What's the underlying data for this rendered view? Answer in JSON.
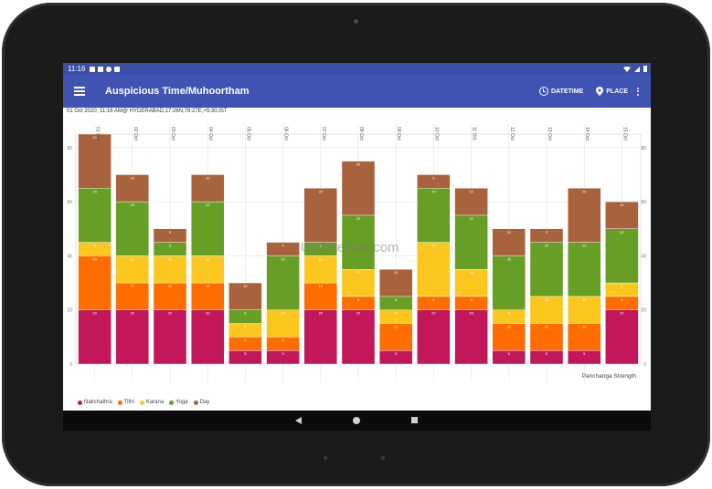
{
  "status_bar": {
    "time": "11:16"
  },
  "toolbar": {
    "title": "Auspicious Time/Muhoortham",
    "datetime_label": "DATETIME",
    "place_label": "PLACE"
  },
  "info_line": "01 Oct 2020, 11:16 AM@ HYDERABAD,17:26N,78:27E,+5:30,IST",
  "watermark": "UpdateStar.com",
  "colors": {
    "nakshathra": "#c2185b",
    "tithi": "#ff6d00",
    "karana": "#fbc71e",
    "yoga": "#679e26",
    "day": "#a8633e",
    "toolbar": "#4153b3",
    "status_bar": "#3c4fa8"
  },
  "chart_data": {
    "type": "bar",
    "stacked": true,
    "categories": [
      "01 Oct",
      "02 Oct",
      "03 Oct",
      "04 Oct",
      "05 Oct",
      "06 Oct",
      "07 Oct",
      "08 Oct",
      "09 Oct",
      "10 Oct",
      "11 Oct",
      "12 Oct",
      "13 Oct",
      "14 Oct",
      "15 Oct"
    ],
    "xlabel": "Panchanga Strength",
    "ylim": [
      0,
      85
    ],
    "y_ticks": [
      0,
      20,
      40,
      60,
      80
    ],
    "legend_position": "bottom-left",
    "series": [
      {
        "name": "Nakshathra",
        "values": [
          20,
          20,
          20,
          20,
          5,
          5,
          20,
          20,
          5,
          20,
          20,
          5,
          5,
          5,
          20
        ]
      },
      {
        "name": "Tithi",
        "values": [
          20,
          10,
          10,
          10,
          5,
          5,
          10,
          5,
          10,
          5,
          5,
          10,
          10,
          10,
          5
        ]
      },
      {
        "name": "Karana",
        "values": [
          5,
          10,
          10,
          10,
          5,
          10,
          10,
          10,
          5,
          20,
          10,
          5,
          10,
          10,
          5
        ]
      },
      {
        "name": "Yoga",
        "values": [
          20,
          20,
          5,
          20,
          5,
          20,
          5,
          20,
          5,
          20,
          20,
          20,
          20,
          20,
          20
        ]
      },
      {
        "name": "Day",
        "values": [
          20,
          10,
          5,
          10,
          10,
          5,
          20,
          20,
          10,
          5,
          10,
          10,
          5,
          20,
          10
        ]
      }
    ]
  }
}
